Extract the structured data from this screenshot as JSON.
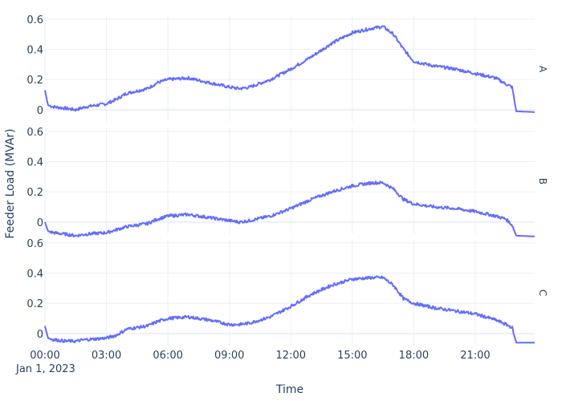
{
  "chart_data": {
    "type": "line",
    "ylabel": "Feeder Load (MVAr)",
    "xlabel": "Time",
    "x_tick_labels": [
      "00:00",
      "03:00",
      "06:00",
      "09:00",
      "12:00",
      "15:00",
      "18:00",
      "21:00"
    ],
    "x_date_label": "Jan 1, 2023",
    "x_range_hours": [
      0,
      23.9
    ],
    "y_tick_labels": [
      "0",
      "0.2",
      "0.4",
      "0.6"
    ],
    "y_range": [
      -0.08,
      0.62
    ],
    "grid": true,
    "line_color": "#636efa",
    "panels": [
      {
        "label": "A",
        "hours": [
          0,
          0.15,
          0.4,
          1,
          1.5,
          2,
          3,
          3.5,
          4,
          5,
          5.5,
          6,
          7,
          8,
          9,
          9.5,
          10,
          11,
          12,
          13,
          14,
          15,
          16,
          16.5,
          17,
          17.5,
          18,
          19,
          20,
          21,
          22,
          22.5,
          22.8,
          23,
          23.9
        ],
        "values": [
          0.13,
          0.03,
          0.02,
          0.01,
          0.0,
          0.02,
          0.04,
          0.07,
          0.11,
          0.14,
          0.18,
          0.2,
          0.21,
          0.18,
          0.15,
          0.14,
          0.15,
          0.2,
          0.27,
          0.35,
          0.44,
          0.51,
          0.54,
          0.55,
          0.5,
          0.4,
          0.32,
          0.29,
          0.27,
          0.24,
          0.21,
          0.17,
          0.15,
          -0.01,
          -0.015
        ]
      },
      {
        "label": "B",
        "hours": [
          0,
          0.15,
          0.4,
          1,
          1.5,
          2,
          3,
          3.5,
          4,
          5,
          5.5,
          6,
          7,
          8,
          9,
          9.5,
          10,
          11,
          12,
          13,
          14,
          15,
          16,
          16.5,
          17,
          17.5,
          18,
          19,
          20,
          21,
          22,
          22.5,
          22.8,
          23,
          23.9
        ],
        "values": [
          0.0,
          -0.06,
          -0.07,
          -0.08,
          -0.09,
          -0.08,
          -0.07,
          -0.05,
          -0.03,
          -0.01,
          0.02,
          0.04,
          0.05,
          0.03,
          0.01,
          0.0,
          0.01,
          0.04,
          0.09,
          0.15,
          0.2,
          0.24,
          0.26,
          0.26,
          0.22,
          0.15,
          0.12,
          0.1,
          0.09,
          0.07,
          0.04,
          0.02,
          -0.02,
          -0.09,
          -0.095
        ]
      },
      {
        "label": "C",
        "hours": [
          0,
          0.15,
          0.4,
          1,
          1.5,
          2,
          3,
          3.5,
          4,
          5,
          5.5,
          6,
          7,
          8,
          9,
          9.5,
          10,
          11,
          12,
          13,
          14,
          15,
          16,
          16.5,
          17,
          17.5,
          18,
          19,
          20,
          21,
          22,
          22.5,
          22.8,
          23,
          23.9
        ],
        "values": [
          0.05,
          -0.03,
          -0.04,
          -0.05,
          -0.05,
          -0.04,
          -0.03,
          -0.01,
          0.03,
          0.05,
          0.08,
          0.1,
          0.11,
          0.09,
          0.06,
          0.06,
          0.07,
          0.11,
          0.18,
          0.26,
          0.32,
          0.36,
          0.37,
          0.37,
          0.32,
          0.23,
          0.2,
          0.17,
          0.15,
          0.13,
          0.09,
          0.06,
          0.04,
          -0.06,
          -0.06
        ]
      }
    ]
  }
}
